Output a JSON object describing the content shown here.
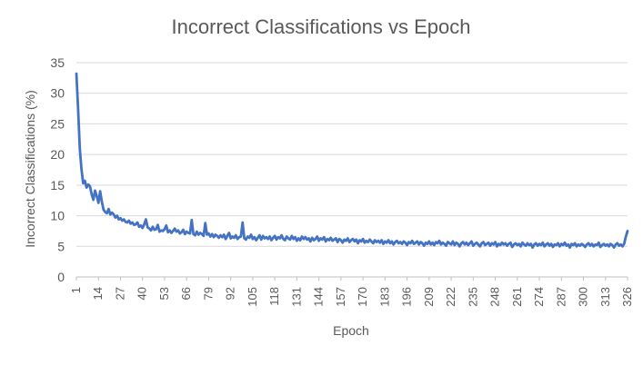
{
  "chart_data": {
    "type": "line",
    "title": "Incorrect Classifications vs Epoch",
    "xlabel": "Epoch",
    "ylabel": "Incorrect Classifications (%)",
    "ylim": [
      0,
      35
    ],
    "yticks": [
      "0",
      "5",
      "10",
      "15",
      "20",
      "25",
      "30",
      "35"
    ],
    "xlim": [
      1,
      326
    ],
    "xticks": [
      "1",
      "14",
      "27",
      "40",
      "53",
      "66",
      "79",
      "92",
      "105",
      "118",
      "131",
      "144",
      "157",
      "170",
      "183",
      "196",
      "209",
      "222",
      "235",
      "248",
      "261",
      "274",
      "287",
      "300",
      "313",
      "326"
    ],
    "grid": true,
    "legend": "none",
    "line_color": "#4472c4",
    "series": [
      {
        "values": [
          33.2,
          27.5,
          21.0,
          17.6,
          15.3,
          15.7,
          14.6,
          15.1,
          14.8,
          13.5,
          12.6,
          14.1,
          13.2,
          12.1,
          14.0,
          12.3,
          11.0,
          10.6,
          10.4,
          11.1,
          10.2,
          10.5,
          10.2,
          9.7,
          10.0,
          9.4,
          9.6,
          9.2,
          9.4,
          9.0,
          8.9,
          9.2,
          8.7,
          8.9,
          8.5,
          8.6,
          8.9,
          8.2,
          8.4,
          8.0,
          8.6,
          9.4,
          8.1,
          7.9,
          7.6,
          8.2,
          7.7,
          7.8,
          8.5,
          7.4,
          7.6,
          7.5,
          7.8,
          8.4,
          7.3,
          7.6,
          7.2,
          7.5,
          7.9,
          7.4,
          7.6,
          7.1,
          7.3,
          7.7,
          7.0,
          7.4,
          7.2,
          7.1,
          9.3,
          7.0,
          6.8,
          7.4,
          6.9,
          7.2,
          7.0,
          6.7,
          8.8,
          6.9,
          7.1,
          6.6,
          7.0,
          6.5,
          6.9,
          6.7,
          6.4,
          6.8,
          6.5,
          6.9,
          6.2,
          6.7,
          7.2,
          6.3,
          6.6,
          6.4,
          6.8,
          6.2,
          6.5,
          6.6,
          8.9,
          6.3,
          6.1,
          6.6,
          6.4,
          6.9,
          6.2,
          6.5,
          6.0,
          6.4,
          6.8,
          6.1,
          6.7,
          6.3,
          6.5,
          6.2,
          6.6,
          6.0,
          6.4,
          6.7,
          6.1,
          6.5,
          6.3,
          6.8,
          6.2,
          6.0,
          6.6,
          6.3,
          6.1,
          6.7,
          6.2,
          6.5,
          5.9,
          6.3,
          6.0,
          6.6,
          6.2,
          6.5,
          6.1,
          6.3,
          5.8,
          6.4,
          6.0,
          6.2,
          6.6,
          5.9,
          6.3,
          6.1,
          6.5,
          5.8,
          6.2,
          6.0,
          6.4,
          5.9,
          6.1,
          6.3,
          5.7,
          6.2,
          6.0,
          5.6,
          6.1,
          5.9,
          6.3,
          5.7,
          6.0,
          6.2,
          5.8,
          6.1,
          5.5,
          6.0,
          5.8,
          6.2,
          5.6,
          5.9,
          5.7,
          6.1,
          5.8,
          5.5,
          6.0,
          5.7,
          5.9,
          5.6,
          6.0,
          5.4,
          5.8,
          5.6,
          6.0,
          5.5,
          5.8,
          5.3,
          5.7,
          5.9,
          5.5,
          5.7,
          5.4,
          5.8,
          5.6,
          5.2,
          5.7,
          5.5,
          5.9,
          5.4,
          5.6,
          5.8,
          5.3,
          5.7,
          5.5,
          5.1,
          5.6,
          5.4,
          5.8,
          5.3,
          5.6,
          5.2,
          5.7,
          5.5,
          5.9,
          5.3,
          5.6,
          5.4,
          5.1,
          5.7,
          5.5,
          5.3,
          5.8,
          5.2,
          5.6,
          5.4,
          5.0,
          5.5,
          5.7,
          5.3,
          5.6,
          5.2,
          5.5,
          5.8,
          5.1,
          5.4,
          5.6,
          5.3,
          5.0,
          5.5,
          5.7,
          5.2,
          5.4,
          5.6,
          5.1,
          5.5,
          5.3,
          5.7,
          5.0,
          5.4,
          5.2,
          5.6,
          5.3,
          5.5,
          5.1,
          5.4,
          5.6,
          4.9,
          5.3,
          5.5,
          5.2,
          5.4,
          5.0,
          5.6,
          5.3,
          5.1,
          5.5,
          5.2,
          5.4,
          4.8,
          5.3,
          5.5,
          5.1,
          5.4,
          5.2,
          5.6,
          5.0,
          5.3,
          5.5,
          5.1,
          5.4,
          4.9,
          5.3,
          5.2,
          5.5,
          5.0,
          5.4,
          5.2,
          5.6,
          5.1,
          5.3,
          4.8,
          5.4,
          5.2,
          5.5,
          5.0,
          5.3,
          5.1,
          5.4,
          5.2,
          4.9,
          5.3,
          5.5,
          5.1,
          5.4,
          5.0,
          5.3,
          5.2,
          5.6,
          4.9,
          5.2,
          5.4,
          5.1,
          5.3,
          5.0,
          5.4,
          5.2,
          4.8,
          5.3,
          5.5,
          5.1,
          5.3,
          5.0,
          5.4,
          6.6,
          7.5
        ]
      }
    ]
  }
}
